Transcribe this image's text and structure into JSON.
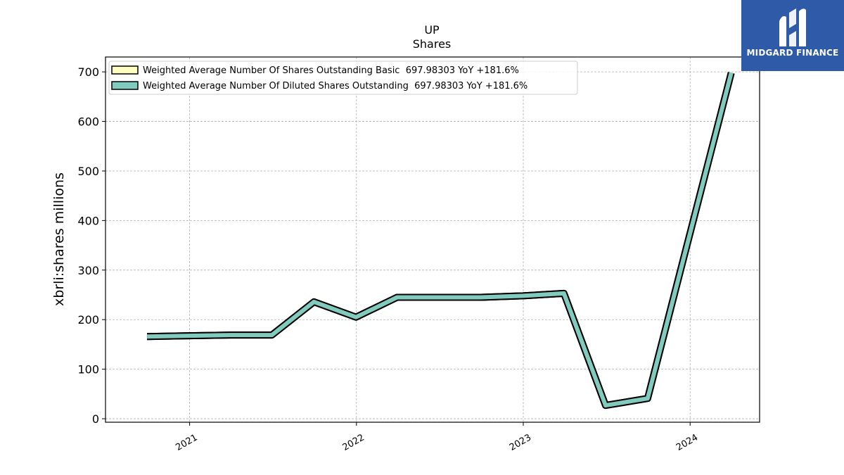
{
  "chart_data": {
    "type": "line",
    "title": "UP",
    "subtitle": "Shares",
    "xlabel": "",
    "ylabel": "xbrli:shares millions",
    "xlim": [
      "2020-07-01",
      "2024-06-01"
    ],
    "ylim": [
      -7,
      730
    ],
    "yticks": [
      0,
      100,
      200,
      300,
      400,
      500,
      600,
      700
    ],
    "xticks": [
      {
        "label": "2021",
        "date": "2021-01-01"
      },
      {
        "label": "2022",
        "date": "2022-01-01"
      },
      {
        "label": "2023",
        "date": "2023-01-01"
      },
      {
        "label": "2024",
        "date": "2024-01-01"
      }
    ],
    "grid": true,
    "legend_position": "top-left",
    "series": [
      {
        "name": "Weighted Average Number Of Shares Outstanding Basic  697.98303 YoY +181.6%",
        "color": "#ffffbf",
        "x": [
          "2020-09-30",
          "2021-03-31",
          "2021-06-30",
          "2021-09-30",
          "2021-12-31",
          "2022-03-31",
          "2022-06-30",
          "2022-09-30",
          "2022-12-31",
          "2023-03-31",
          "2023-06-30",
          "2023-09-30",
          "2024-03-31"
        ],
        "values": [
          166,
          169,
          169,
          236,
          205,
          245,
          245,
          245,
          248,
          253,
          27,
          41,
          698
        ]
      },
      {
        "name": "Weighted Average Number Of Diluted Shares Outstanding  697.98303 YoY +181.6%",
        "color": "#80cbbd",
        "x": [
          "2020-09-30",
          "2021-03-31",
          "2021-06-30",
          "2021-09-30",
          "2021-12-31",
          "2022-03-31",
          "2022-06-30",
          "2022-09-30",
          "2022-12-31",
          "2023-03-31",
          "2023-06-30",
          "2023-09-30",
          "2024-03-31"
        ],
        "values": [
          166,
          169,
          169,
          236,
          205,
          245,
          245,
          245,
          248,
          253,
          27,
          41,
          698
        ]
      }
    ]
  },
  "logo": {
    "text": "MIDGARD FINANCE",
    "background": "#2f5aa8"
  }
}
